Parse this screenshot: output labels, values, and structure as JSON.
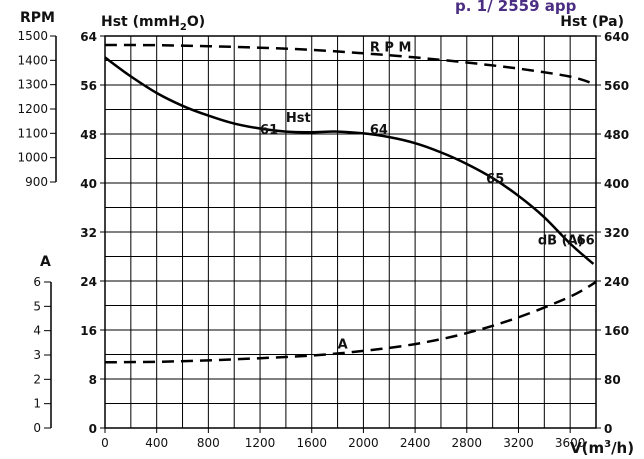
{
  "header": {
    "partial_title": "p. 1/ 2559 app"
  },
  "chart_data": {
    "type": "line",
    "xlabel_prefix": "V(m",
    "xlabel_sup": "3",
    "xlabel_suffix": "/h)",
    "ylabel_left_prefix": "Hst (mmH",
    "ylabel_left_sub": "2",
    "ylabel_left_suffix": "O)",
    "ylabel_right": "Hst (Pa)",
    "rpm_axis_label": "RPM",
    "amp_axis_label": "A",
    "xlim": [
      0,
      3800
    ],
    "ylim": [
      0,
      64
    ],
    "x_ticks": [
      0,
      400,
      800,
      1200,
      1600,
      2000,
      2400,
      2800,
      3200,
      3600
    ],
    "x_tick_labels": [
      "0",
      "400",
      "800",
      "1200",
      "1600",
      "2000",
      "2400",
      "2800",
      "3200",
      "3600"
    ],
    "y_left_ticks": [
      0,
      8,
      16,
      24,
      32,
      40,
      48,
      56,
      64
    ],
    "y_left_labels": [
      "0",
      "8",
      "16",
      "24",
      "32",
      "40",
      "48",
      "56",
      "64"
    ],
    "y_right_ticks": [
      0,
      8,
      16,
      24,
      32,
      40,
      48,
      56,
      64
    ],
    "y_right_labels": [
      "0",
      "80",
      "160",
      "240",
      "320",
      "400",
      "480",
      "560",
      "640"
    ],
    "rpm_scale": {
      "range": [
        900,
        1500
      ],
      "labels": [
        "900",
        "1000",
        "1100",
        "1200",
        "1300",
        "1400",
        "1500"
      ]
    },
    "amp_scale": {
      "range": [
        0,
        6
      ],
      "labels": [
        "0",
        "1",
        "2",
        "3",
        "4",
        "5",
        "6"
      ]
    },
    "series": [
      {
        "name": "Hst",
        "style": "solid",
        "x": [
          0,
          200,
          400,
          600,
          800,
          1000,
          1200,
          1400,
          1600,
          1800,
          2000,
          2200,
          2400,
          2600,
          2800,
          3000,
          3200,
          3400,
          3600,
          3780
        ],
        "y": [
          60.5,
          57.4,
          54.7,
          52.6,
          51.0,
          49.7,
          48.9,
          48.4,
          48.3,
          48.4,
          48.1,
          47.5,
          46.5,
          45.0,
          43.1,
          40.8,
          37.9,
          34.4,
          30.1,
          26.8
        ]
      },
      {
        "name": "RPM",
        "style": "dashed",
        "x": [
          0,
          400,
          800,
          1200,
          1600,
          2000,
          2400,
          2800,
          3200,
          3600,
          3800
        ],
        "y": [
          1463,
          1462,
          1458,
          1452,
          1443,
          1429,
          1412,
          1391,
          1366,
          1333,
          1300
        ]
      },
      {
        "name": "A",
        "style": "dashed",
        "x": [
          0,
          400,
          800,
          1200,
          1600,
          2000,
          2400,
          2800,
          3200,
          3600,
          3800
        ],
        "y": [
          2.7,
          2.72,
          2.78,
          2.87,
          2.98,
          3.17,
          3.45,
          3.9,
          4.55,
          5.4,
          6.0
        ]
      }
    ],
    "annotations": [
      {
        "text": "61",
        "x": 1200,
        "y": 48
      },
      {
        "text": "64",
        "x": 2050,
        "y": 48
      },
      {
        "text": "65",
        "x": 2950,
        "y": 40
      },
      {
        "text": "66",
        "x": 3650,
        "y": 30
      },
      {
        "text": "dB (A)",
        "x": 3350,
        "y": 30
      },
      {
        "text": "Hst",
        "x": 1400,
        "y": 50
      },
      {
        "text": "R P M",
        "x": 2050,
        "y": 61.5
      },
      {
        "text": "A",
        "x": 1800,
        "y": 13
      }
    ],
    "grid": true,
    "colors": {
      "ink": "#000000",
      "header": "#4b2e83"
    }
  }
}
